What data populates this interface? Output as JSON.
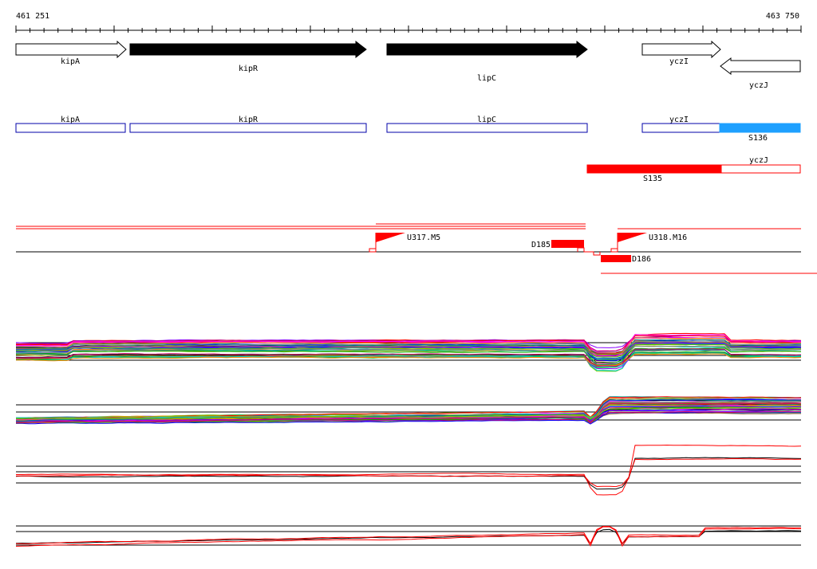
{
  "ruler": {
    "start_label": "461 251",
    "end_label": "463 750"
  },
  "genes": [
    {
      "name": "kipA",
      "strand": "+",
      "fill": "#ffffff"
    },
    {
      "name": "kipR",
      "strand": "+",
      "fill": "#000000"
    },
    {
      "name": "lipC",
      "strand": "+",
      "fill": "#000000"
    },
    {
      "name": "yczI",
      "strand": "+",
      "fill": "#ffffff"
    },
    {
      "name": "yczJ",
      "strand": "-",
      "fill": "#ffffff"
    }
  ],
  "gene_boxes": [
    {
      "name": "kipA",
      "color": "#0000aa"
    },
    {
      "name": "kipR",
      "color": "#0000aa"
    },
    {
      "name": "lipC",
      "color": "#0000aa"
    },
    {
      "name": "yczI",
      "color": "#0000aa"
    }
  ],
  "segments": [
    {
      "name": "S136",
      "color": "#1ea0ff"
    },
    {
      "name": "yczJ",
      "color": "#ff0000"
    },
    {
      "name": "S135",
      "color": "#ff0000"
    }
  ],
  "features": [
    {
      "name": "U317.M5",
      "type": "flag",
      "color": "#ff0000"
    },
    {
      "name": "U318.M16",
      "type": "flag",
      "color": "#ff0000"
    },
    {
      "name": "D185",
      "type": "block",
      "color": "#ff0000"
    },
    {
      "name": "D186",
      "type": "block",
      "color": "#ff0000"
    }
  ],
  "colors": {
    "track_line": "#000000",
    "feature_line": "#ff0000",
    "multi_series": [
      "#ff0000",
      "#00aa00",
      "#0000ff",
      "#ff00ff",
      "#00cccc",
      "#aaaa00",
      "#ff8800",
      "#8800ff",
      "#008888",
      "#888888",
      "#cc0066",
      "#66cc00",
      "#000000",
      "#0066cc",
      "#996633"
    ]
  }
}
